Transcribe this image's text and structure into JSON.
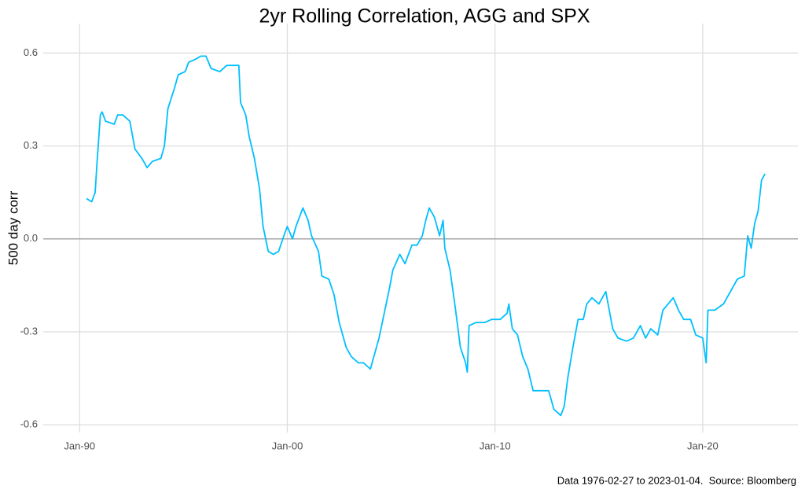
{
  "chart_data": {
    "type": "line",
    "title": "2yr Rolling Correlation, AGG and SPX",
    "y_label": "500 day corr",
    "caption": "Data 1976-02-27 to 2023-01-04.  Source: Bloomberg",
    "x": [
      "1990-05",
      "1990-08",
      "1990-10",
      "1990-11",
      "1991-01",
      "1991-02",
      "1991-04",
      "1991-09",
      "1991-11",
      "1992-02",
      "1992-06",
      "1992-09",
      "1993-01",
      "1993-04",
      "1993-07",
      "1993-12",
      "1994-02",
      "1994-04",
      "1994-08",
      "1994-10",
      "1995-02",
      "1995-04",
      "1995-08",
      "1995-11",
      "1996-02",
      "1996-05",
      "1996-10",
      "1997-02",
      "1997-07",
      "1997-09",
      "1997-10",
      "1998-01",
      "1998-03",
      "1998-06",
      "1998-09",
      "1998-11",
      "1999-02",
      "1999-05",
      "1999-08",
      "1999-11",
      "2000-01",
      "2000-04",
      "2000-06",
      "2000-10",
      "2001-01",
      "2001-03",
      "2001-07",
      "2001-09",
      "2002-01",
      "2002-04",
      "2002-07",
      "2002-11",
      "2003-02",
      "2003-06",
      "2003-09",
      "2004-01",
      "2004-03",
      "2004-06",
      "2004-09",
      "2004-12",
      "2005-02",
      "2005-06",
      "2005-09",
      "2006-01",
      "2006-04",
      "2006-07",
      "2006-09",
      "2006-11",
      "2007-02",
      "2007-05",
      "2007-07",
      "2007-08",
      "2007-11",
      "2008-02",
      "2008-05",
      "2008-08",
      "2008-09",
      "2008-10",
      "2009-02",
      "2009-07",
      "2009-11",
      "2010-04",
      "2010-08",
      "2010-09",
      "2010-11",
      "2011-02",
      "2011-05",
      "2011-08",
      "2011-11",
      "2012-04",
      "2012-08",
      "2012-11",
      "2013-03",
      "2013-05",
      "2013-07",
      "2013-10",
      "2014-01",
      "2014-04",
      "2014-06",
      "2014-09",
      "2015-01",
      "2015-05",
      "2015-07",
      "2015-09",
      "2015-12",
      "2016-05",
      "2016-09",
      "2017-01",
      "2017-04",
      "2017-07",
      "2017-11",
      "2018-02",
      "2018-05",
      "2018-08",
      "2018-11",
      "2019-02",
      "2019-06",
      "2019-09",
      "2020-01",
      "2020-03",
      "2020-04",
      "2020-08",
      "2021-01",
      "2021-05",
      "2021-09",
      "2022-01",
      "2022-03",
      "2022-05",
      "2022-07",
      "2022-09",
      "2022-11",
      "2023-01"
    ],
    "series": [
      {
        "name": "500 day corr",
        "color": "#00bfff",
        "values": [
          0.13,
          0.12,
          0.15,
          0.24,
          0.4,
          0.41,
          0.38,
          0.37,
          0.4,
          0.4,
          0.38,
          0.29,
          0.26,
          0.23,
          0.25,
          0.26,
          0.3,
          0.42,
          0.49,
          0.53,
          0.54,
          0.57,
          0.58,
          0.59,
          0.59,
          0.55,
          0.54,
          0.56,
          0.56,
          0.56,
          0.44,
          0.4,
          0.33,
          0.26,
          0.16,
          0.04,
          -0.04,
          -0.05,
          -0.04,
          0.01,
          0.04,
          0.0,
          0.04,
          0.1,
          0.06,
          0.01,
          -0.04,
          -0.12,
          -0.13,
          -0.18,
          -0.27,
          -0.35,
          -0.38,
          -0.4,
          -0.4,
          -0.42,
          -0.38,
          -0.32,
          -0.24,
          -0.16,
          -0.1,
          -0.05,
          -0.08,
          -0.02,
          -0.02,
          0.01,
          0.06,
          0.1,
          0.07,
          0.01,
          0.06,
          -0.03,
          -0.1,
          -0.22,
          -0.35,
          -0.4,
          -0.43,
          -0.28,
          -0.27,
          -0.27,
          -0.26,
          -0.26,
          -0.24,
          -0.21,
          -0.29,
          -0.31,
          -0.38,
          -0.42,
          -0.49,
          -0.49,
          -0.49,
          -0.55,
          -0.57,
          -0.54,
          -0.45,
          -0.35,
          -0.26,
          -0.26,
          -0.21,
          -0.19,
          -0.21,
          -0.17,
          -0.23,
          -0.29,
          -0.32,
          -0.33,
          -0.32,
          -0.28,
          -0.32,
          -0.29,
          -0.31,
          -0.23,
          -0.21,
          -0.19,
          -0.23,
          -0.26,
          -0.26,
          -0.31,
          -0.32,
          -0.4,
          -0.23,
          -0.23,
          -0.21,
          -0.17,
          -0.13,
          -0.12,
          0.01,
          -0.03,
          0.05,
          0.09,
          0.19,
          0.21
        ]
      }
    ],
    "xlim": [
      "1988-04",
      "2024-08"
    ],
    "xticks": [
      {
        "value": "1990-01",
        "label": "Jan-90"
      },
      {
        "value": "2000-01",
        "label": "Jan-00"
      },
      {
        "value": "2010-01",
        "label": "Jan-10"
      },
      {
        "value": "2020-01",
        "label": "Jan-20"
      }
    ],
    "ylim": [
      -0.625,
      0.695
    ],
    "yticks": [
      0.6,
      0.3,
      {
        "value": 0,
        "label": "0.0"
      },
      -0.3,
      -0.6
    ],
    "hline": 0,
    "grid": true
  }
}
